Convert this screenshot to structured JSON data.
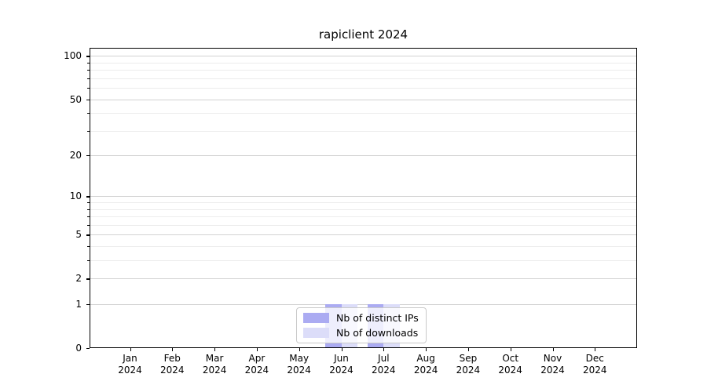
{
  "figure": {
    "title": "rapiclient 2024",
    "background_color": "#ffffff"
  },
  "chart_data": {
    "type": "bar",
    "title": "rapiclient 2024",
    "x_tick_labels": [
      [
        "Jan",
        "2024"
      ],
      [
        "Feb",
        "2024"
      ],
      [
        "Mar",
        "2024"
      ],
      [
        "Apr",
        "2024"
      ],
      [
        "May",
        "2024"
      ],
      [
        "Jun",
        "2024"
      ],
      [
        "Jul",
        "2024"
      ],
      [
        "Aug",
        "2024"
      ],
      [
        "Sep",
        "2024"
      ],
      [
        "Oct",
        "2024"
      ],
      [
        "Nov",
        "2024"
      ],
      [
        "Dec",
        "2024"
      ]
    ],
    "series": [
      {
        "name": "Nb of distinct IPs",
        "color": "#ABABF2",
        "values": [
          0,
          0,
          0,
          0,
          0,
          1,
          1,
          0,
          0,
          0,
          0,
          0
        ]
      },
      {
        "name": "Nb of downloads",
        "color": "#DCDDF9",
        "values": [
          0,
          0,
          0,
          0,
          0,
          1,
          1,
          0,
          0,
          0,
          0,
          0
        ]
      }
    ],
    "xlabel": "",
    "ylabel": "",
    "yscale": "log1p",
    "ylim": [
      0,
      114
    ],
    "y_major_ticks": [
      0,
      1,
      2,
      5,
      10,
      20,
      50,
      100
    ],
    "y_minor_ticks": [
      3,
      4,
      6,
      7,
      8,
      9,
      30,
      40,
      60,
      70,
      80,
      90
    ],
    "grid": "horizontal",
    "legend_position": "bottom-center",
    "colors": {
      "grid_major": "#d2d2d2",
      "grid_minor": "#ececec",
      "axis": "#000000"
    }
  },
  "legend": {
    "items": [
      {
        "label": "Nb of distinct IPs",
        "color": "#ABABF2"
      },
      {
        "label": "Nb of downloads",
        "color": "#DCDDF9"
      }
    ]
  }
}
